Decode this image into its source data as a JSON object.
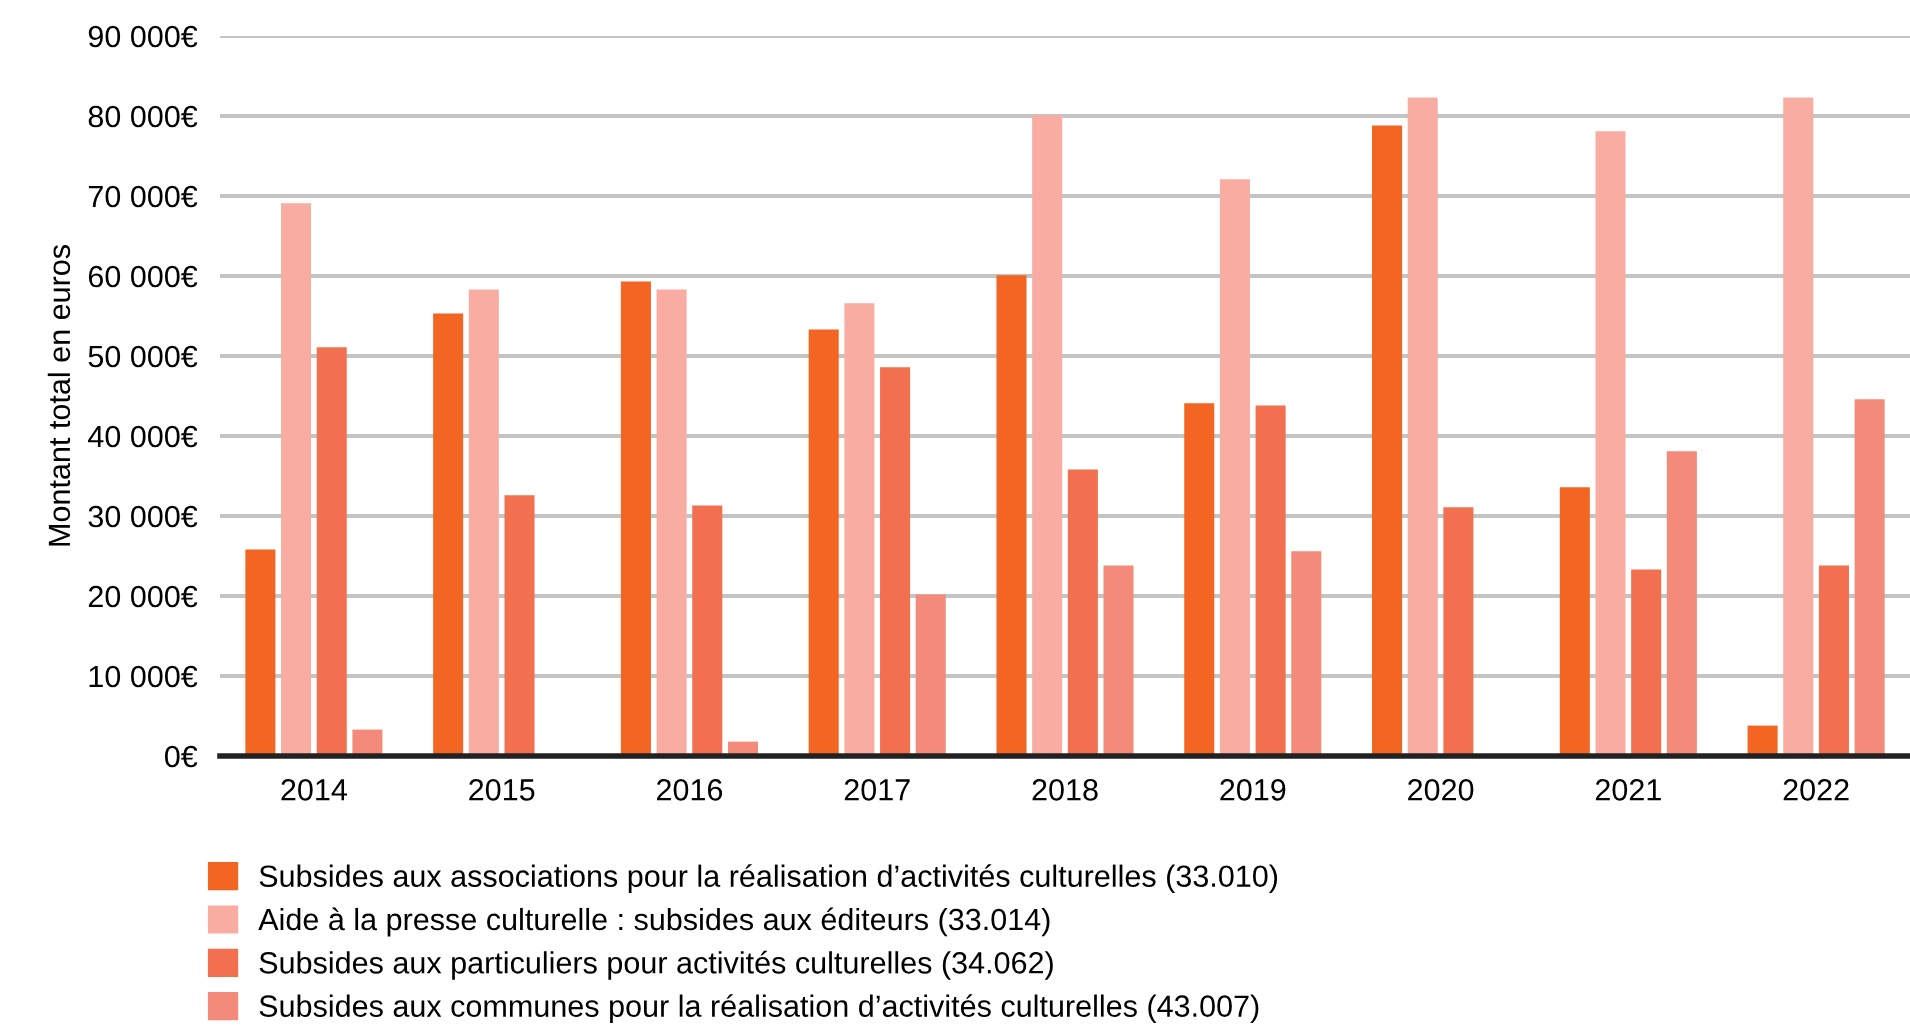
{
  "chart_data": {
    "type": "bar",
    "ylabel": "Montant total en euros",
    "categories": [
      "2014",
      "2015",
      "2016",
      "2017",
      "2018",
      "2019",
      "2020",
      "2021",
      "2022"
    ],
    "series": [
      {
        "name": "Subsides aux associations pour la réalisation d’activités culturelles (33.010)",
        "color": "#f26522",
        "values": [
          25800,
          55300,
          59300,
          53300,
          60100,
          44100,
          78800,
          33600,
          3800
        ]
      },
      {
        "name": "Aide à la presse culturelle : subsides aux éditeurs (33.014)",
        "color": "#f9ada2",
        "values": [
          69100,
          58300,
          58300,
          56600,
          80100,
          72100,
          82300,
          78100,
          82300
        ]
      },
      {
        "name": "Subsides aux particuliers pour activités culturelles (34.062)",
        "color": "#f26f4f",
        "values": [
          51100,
          32600,
          31300,
          48600,
          35800,
          43800,
          31100,
          23300,
          23800
        ]
      },
      {
        "name": "Subsides aux communes pour la réalisation d’activités culturelles (43.007)",
        "color": "#f48b7a",
        "values": [
          3300,
          null,
          1800,
          20200,
          23800,
          25600,
          null,
          38100,
          44600
        ]
      }
    ],
    "ylim": [
      0,
      90000
    ],
    "yticks": [
      {
        "value": 0,
        "label": "0€"
      },
      {
        "value": 10000,
        "label": "10 000€"
      },
      {
        "value": 20000,
        "label": "20 000€"
      },
      {
        "value": 30000,
        "label": "30 000€"
      },
      {
        "value": 40000,
        "label": "40 000€"
      },
      {
        "value": 50000,
        "label": "50 000€"
      },
      {
        "value": 60000,
        "label": "60 000€"
      },
      {
        "value": 70000,
        "label": "70 000€"
      },
      {
        "value": 80000,
        "label": "80 000€"
      },
      {
        "value": 90000,
        "label": "90 000€"
      }
    ],
    "grid": "y",
    "legend": "bottom"
  }
}
